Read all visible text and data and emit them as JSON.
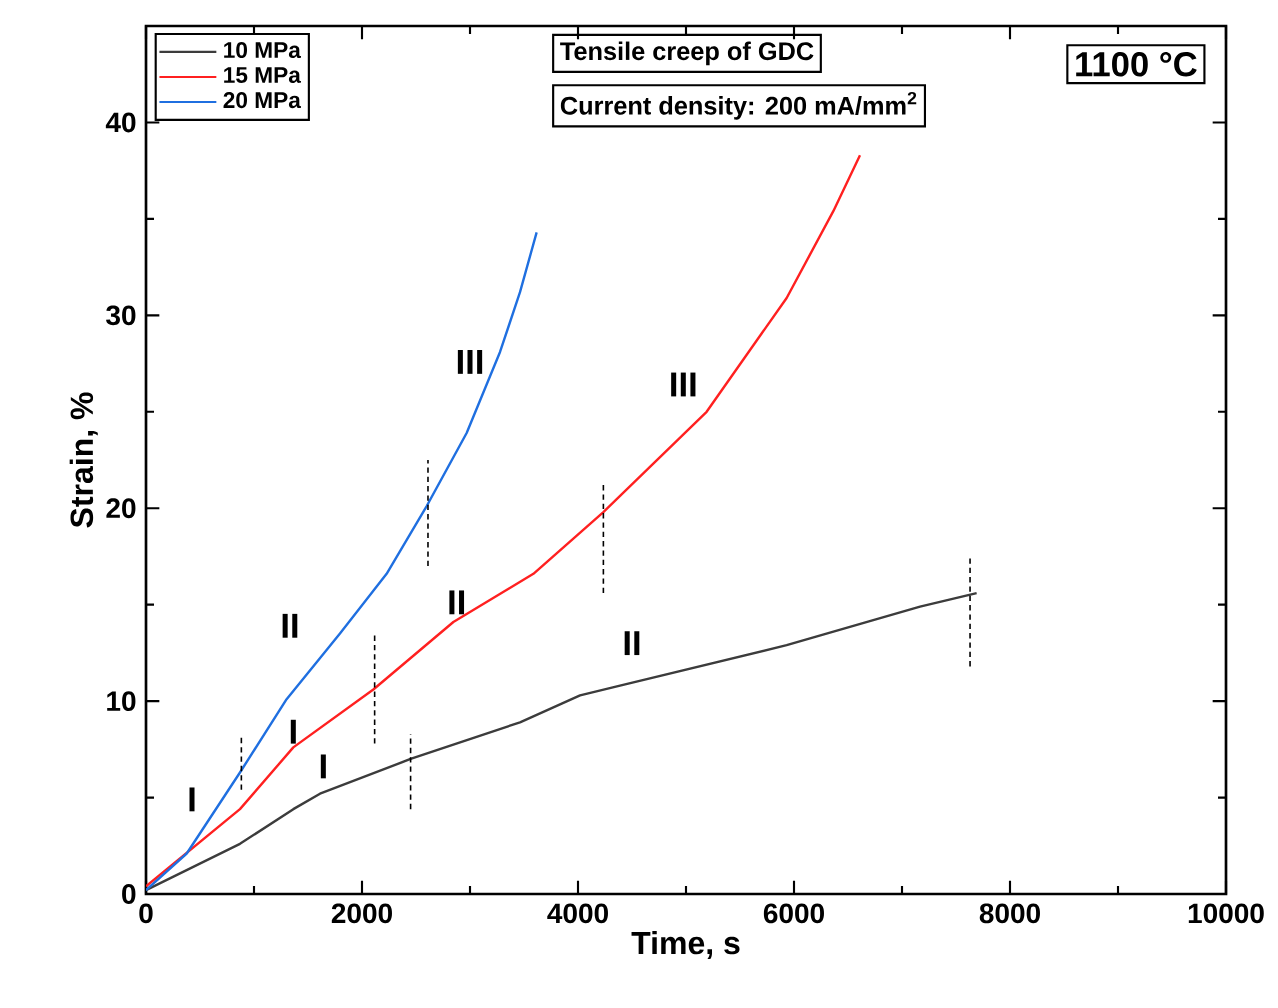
{
  "chart_data": {
    "type": "line",
    "xlabel": "Time, s",
    "ylabel": "Strain, %",
    "xlim": [
      0,
      10000
    ],
    "ylim": [
      0,
      45
    ],
    "xticks": [
      0,
      2000,
      4000,
      6000,
      8000,
      10000
    ],
    "yticks": [
      0,
      10,
      20,
      30,
      40
    ],
    "legend": "top left",
    "grid": false,
    "marker": "none",
    "line_style": "solid",
    "series": [
      {
        "name": "10 MPa",
        "color": "#3c3c3c",
        "x": [
          0,
          870,
          1364,
          1611,
          2450,
          3463,
          4019,
          4389,
          5932,
          7167,
          7691
        ],
        "values": [
          0.2,
          2.6,
          4.4,
          5.2,
          7.0,
          8.9,
          10.3,
          10.8,
          12.9,
          14.9,
          15.6
        ]
      },
      {
        "name": "15 MPa",
        "color": "#ff2020",
        "x": [
          0,
          870,
          1364,
          2105,
          2846,
          3587,
          4235,
          5191,
          5932,
          6364,
          6611
        ],
        "values": [
          0.4,
          4.4,
          7.6,
          10.6,
          14.1,
          16.6,
          19.8,
          25.0,
          30.9,
          35.4,
          38.3
        ]
      },
      {
        "name": "20 MPa",
        "color": "#1f6fe0",
        "x": [
          0,
          377,
          870,
          1302,
          1796,
          2228,
          2598,
          2969,
          3278,
          3463,
          3617
        ],
        "values": [
          0.2,
          2.1,
          6.3,
          10.1,
          13.5,
          16.6,
          20.1,
          23.9,
          28.1,
          31.2,
          34.3
        ]
      },
      {
        "type": "line",
        "line_style": "dashed",
        "color": "#000000",
        "x": [
          883,
          883
        ],
        "values": [
          5.4,
          8.2
        ]
      },
      {
        "type": "line",
        "line_style": "dashed",
        "color": "#000000",
        "x": [
          2117,
          2117
        ],
        "values": [
          7.8,
          13.5
        ]
      },
      {
        "type": "line",
        "line_style": "dashed",
        "color": "#000000",
        "x": [
          2450,
          2450
        ],
        "values": [
          4.4,
          8.3
        ]
      },
      {
        "type": "line",
        "line_style": "dashed",
        "color": "#000000",
        "x": [
          2611,
          2611
        ],
        "values": [
          17.0,
          22.5
        ]
      },
      {
        "type": "line",
        "line_style": "dashed",
        "color": "#000000",
        "x": [
          4235,
          4235
        ],
        "values": [
          15.6,
          21.2
        ]
      },
      {
        "type": "line",
        "line_style": "dashed",
        "color": "#000000",
        "x": [
          7630,
          7630
        ],
        "values": [
          11.8,
          17.5
        ]
      }
    ],
    "annotations": [
      "Tensile creep of GDC",
      "Current density: 200 mA/mm$^{2}$",
      "1100 °C",
      "I",
      "I",
      "I",
      "II",
      "II",
      "III",
      "II",
      "III"
    ]
  }
}
